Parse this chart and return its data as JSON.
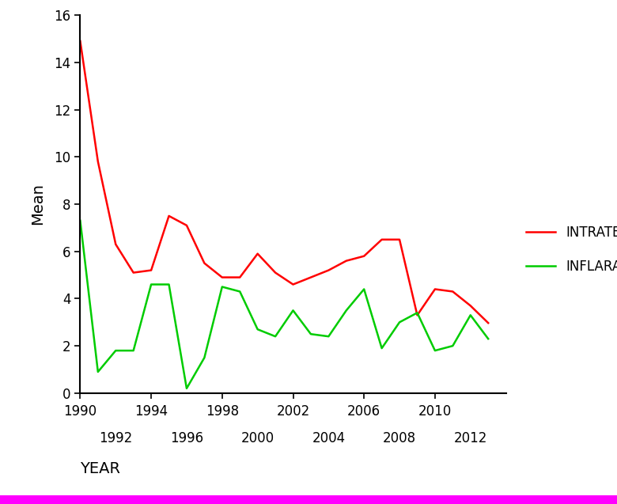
{
  "years": [
    1990,
    1991,
    1992,
    1993,
    1994,
    1995,
    1996,
    1997,
    1998,
    1999,
    2000,
    2001,
    2002,
    2003,
    2004,
    2005,
    2006,
    2007,
    2008,
    2009,
    2010,
    2011,
    2012,
    2013
  ],
  "intrate": [
    14.9,
    9.8,
    6.3,
    5.1,
    5.2,
    7.5,
    7.1,
    5.5,
    4.9,
    4.9,
    5.9,
    5.1,
    4.6,
    4.9,
    5.2,
    5.6,
    5.8,
    6.5,
    6.5,
    3.3,
    4.4,
    4.3,
    3.7,
    2.97
  ],
  "inflarat": [
    7.3,
    0.9,
    1.8,
    1.8,
    4.6,
    4.6,
    0.2,
    1.5,
    4.5,
    4.3,
    2.7,
    2.4,
    3.5,
    2.5,
    2.4,
    3.5,
    4.4,
    1.9,
    3.0,
    3.4,
    1.8,
    2.0,
    3.3,
    2.3
  ],
  "intrate_color": "#ff0000",
  "inflarat_color": "#00cc00",
  "xlabel": "YEAR",
  "ylabel": "Mean",
  "ylim": [
    0,
    16
  ],
  "yticks": [
    0,
    2,
    4,
    6,
    8,
    10,
    12,
    14,
    16
  ],
  "xticks_top": [
    1990,
    1994,
    1998,
    2002,
    2006,
    2010
  ],
  "xticks_bottom": [
    1992,
    1996,
    2000,
    2004,
    2008,
    2012
  ],
  "legend_intrate": "INTRATE",
  "legend_inflarat": "INFLARAT",
  "background_color": "#ffffff",
  "linewidth": 1.8,
  "tick_fontsize": 12,
  "label_fontsize": 14
}
